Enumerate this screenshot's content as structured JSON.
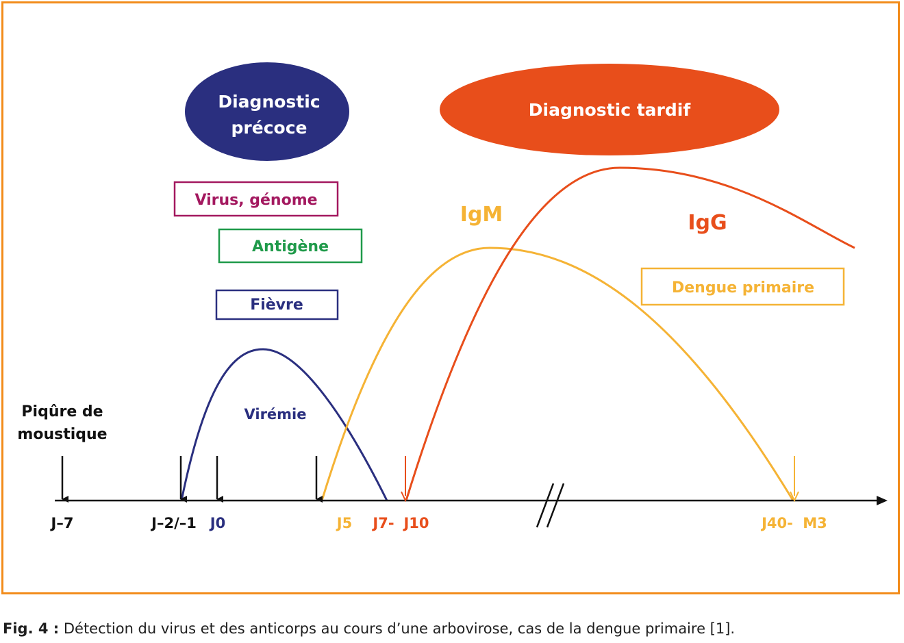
{
  "colors": {
    "frame": "#f28c1b",
    "navy": "#2a2f7f",
    "orange_red": "#e84e1b",
    "yellow": "#f5b335",
    "purple": "#a3185f",
    "green": "#1f9a4a",
    "black": "#111111"
  },
  "ellipses": {
    "early": {
      "line1": "Diagnostic",
      "line2": "précoce"
    },
    "late": {
      "label": "Diagnostic tardif"
    }
  },
  "boxes": {
    "virus": "Virus, génome",
    "antigen": "Antigène",
    "fever": "Fièvre",
    "dengue": "Dengue primaire"
  },
  "curve_labels": {
    "viremia": "Virémie",
    "igm": "IgM",
    "igg": "IgG"
  },
  "bite_label": {
    "line1": "Piqûre de",
    "line2": "moustique"
  },
  "timeline": {
    "j_minus7": "J–7",
    "j_minus2_1": "J–2/–1",
    "j0": "J0",
    "j5": "J5",
    "j7": "J7-",
    "j10": "J10",
    "j40": "J40-",
    "m3": "M3"
  },
  "caption": {
    "fig": "Fig. 4 :",
    "text": " Détection du virus et des anticorps au cours d’une arbovirose, cas de la dengue primaire [1]."
  }
}
